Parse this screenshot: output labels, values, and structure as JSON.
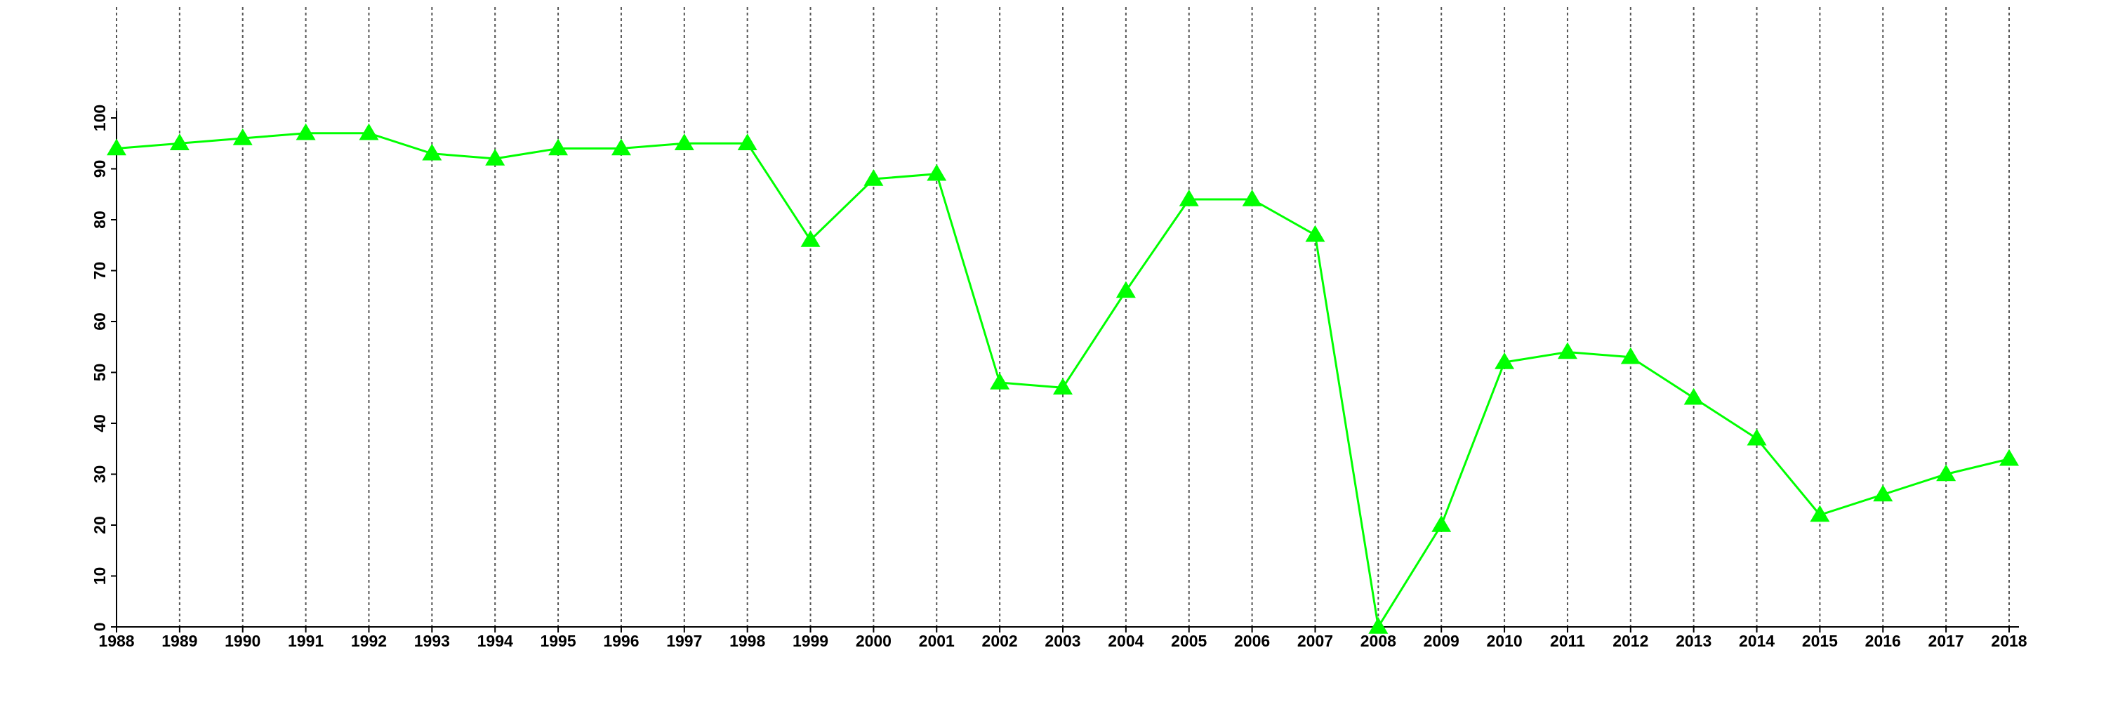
{
  "chart_data": {
    "type": "line",
    "x": [
      1988,
      1989,
      1990,
      1991,
      1992,
      1993,
      1994,
      1995,
      1996,
      1997,
      1998,
      1999,
      2000,
      2001,
      2002,
      2003,
      2004,
      2005,
      2006,
      2007,
      2008,
      2009,
      2010,
      2011,
      2012,
      2013,
      2014,
      2015,
      2016,
      2017,
      2018
    ],
    "series": [
      {
        "color": "#00ff00",
        "values": [
          94,
          95,
          96,
          97,
          97,
          93,
          92,
          94,
          94,
          95,
          95,
          76,
          88,
          89,
          48,
          47,
          66,
          84,
          84,
          77,
          0,
          20,
          52,
          54,
          53,
          45,
          37,
          22,
          26,
          30,
          33
        ]
      }
    ],
    "xlim": [
      1988,
      2018
    ],
    "ylim": [
      0,
      100
    ],
    "yticks": [
      0,
      10,
      20,
      30,
      40,
      50,
      60,
      70,
      80,
      90,
      100
    ],
    "grid": "x"
  }
}
